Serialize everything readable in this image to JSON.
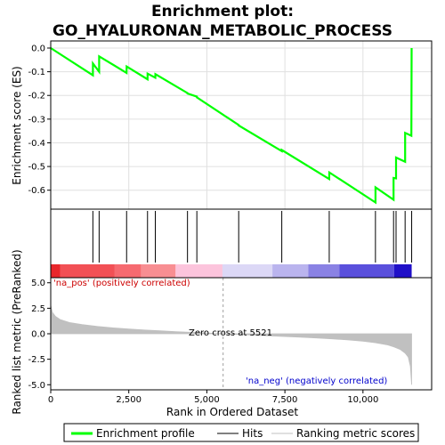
{
  "chart_data": {
    "type": "line",
    "title_line1": "Enrichment plot:",
    "title_line2": "GO_HYALURONAN_METABOLIC_PROCESS",
    "xlabel": "Rank in Ordered Dataset",
    "ylabel_top": "Enrichment score (ES)",
    "ylabel_bottom": "Ranked list metric (PreRanked)",
    "x_range": [
      0,
      12200
    ],
    "es_ylim": [
      -0.68,
      0.03
    ],
    "metric_ylim": [
      -5.5,
      5.5
    ],
    "x_ticks": [
      0,
      2500,
      5000,
      7500,
      10000
    ],
    "x_tick_labels": [
      "0",
      "2,500",
      "5,000",
      "7,500",
      "10,000"
    ],
    "es_ticks": [
      0.0,
      -0.1,
      -0.2,
      -0.3,
      -0.4,
      -0.5,
      -0.6
    ],
    "es_tick_labels": [
      "0.0",
      "-0.1",
      "-0.2",
      "-0.3",
      "-0.4",
      "-0.5",
      "-0.6"
    ],
    "metric_ticks": [
      5.0,
      2.5,
      0.0,
      -2.5,
      -5.0
    ],
    "metric_tick_labels": [
      "5.0",
      "2.5",
      "0.0",
      "-2.5",
      "-5.0"
    ],
    "es_profile": {
      "name": "Enrichment profile",
      "x": [
        0,
        1350,
        1351,
        1550,
        1551,
        2430,
        2431,
        3100,
        3101,
        3350,
        3351,
        4380,
        4381,
        4680,
        4681,
        6020,
        6021,
        7400,
        7401,
        8920,
        8921,
        10400,
        10401,
        10980,
        10981,
        11060,
        11061,
        11350,
        11351,
        11550,
        11560
      ],
      "y": [
        0.0,
        -0.115,
        -0.065,
        -0.1,
        -0.035,
        -0.105,
        -0.078,
        -0.132,
        -0.108,
        -0.125,
        -0.11,
        -0.19,
        -0.192,
        -0.205,
        -0.208,
        -0.325,
        -0.327,
        -0.435,
        -0.43,
        -0.553,
        -0.525,
        -0.652,
        -0.588,
        -0.64,
        -0.548,
        -0.55,
        -0.462,
        -0.48,
        -0.358,
        -0.37,
        0.0
      ]
    },
    "hits": [
      1350,
      1550,
      2430,
      3100,
      3350,
      4380,
      4680,
      6020,
      7400,
      8920,
      10400,
      10980,
      11060,
      11350,
      11560
    ],
    "heatmap_segments": [
      {
        "x0": 0,
        "x1": 300,
        "color": "#e8262b"
      },
      {
        "x0": 300,
        "x1": 2050,
        "color": "#f25055"
      },
      {
        "x0": 2050,
        "x1": 2900,
        "color": "#f66a70"
      },
      {
        "x0": 2900,
        "x1": 4000,
        "color": "#f88e92"
      },
      {
        "x0": 4000,
        "x1": 5500,
        "color": "#fcc4dc"
      },
      {
        "x0": 5500,
        "x1": 7100,
        "color": "#dcd8f6"
      },
      {
        "x0": 7100,
        "x1": 8250,
        "color": "#bab4ee"
      },
      {
        "x0": 8250,
        "x1": 9250,
        "color": "#8a82e4"
      },
      {
        "x0": 9250,
        "x1": 11000,
        "color": "#5a50dc"
      },
      {
        "x0": 11000,
        "x1": 11560,
        "color": "#2010c8"
      }
    ],
    "metric_curve": {
      "name": "Ranking metric scores",
      "x": [
        0,
        50,
        150,
        300,
        600,
        1000,
        1500,
        2000,
        2500,
        3000,
        3500,
        4000,
        4500,
        5000,
        5521,
        6000,
        6500,
        7000,
        7500,
        8000,
        8500,
        9000,
        9500,
        10000,
        10400,
        10800,
        11000,
        11200,
        11350,
        11450,
        11520,
        11560
      ],
      "y": [
        2.8,
        2.1,
        1.7,
        1.4,
        1.1,
        0.9,
        0.72,
        0.58,
        0.47,
        0.37,
        0.29,
        0.21,
        0.14,
        0.07,
        0.0,
        -0.07,
        -0.13,
        -0.2,
        -0.27,
        -0.34,
        -0.41,
        -0.5,
        -0.6,
        -0.73,
        -0.88,
        -1.1,
        -1.3,
        -1.55,
        -1.9,
        -2.3,
        -3.2,
        -5.0
      ]
    },
    "zero_cross_label": "Zero cross at 5521",
    "zero_cross_x": 5521,
    "pos_label": "'na_pos' (positively correlated)",
    "neg_label": "'na_neg' (negatively correlated)",
    "colors": {
      "es_line": "#00ff00",
      "hit_line": "#000000",
      "metric_fill": "#c0c0c0",
      "pos_label": "#cc0000",
      "neg_label": "#0000cc",
      "grid": "#e0e0e0"
    },
    "legend": [
      {
        "label": "Enrichment profile",
        "kind": "green-line"
      },
      {
        "label": "Hits",
        "kind": "black-line"
      },
      {
        "label": "Ranking metric scores",
        "kind": "gray-line"
      }
    ]
  }
}
